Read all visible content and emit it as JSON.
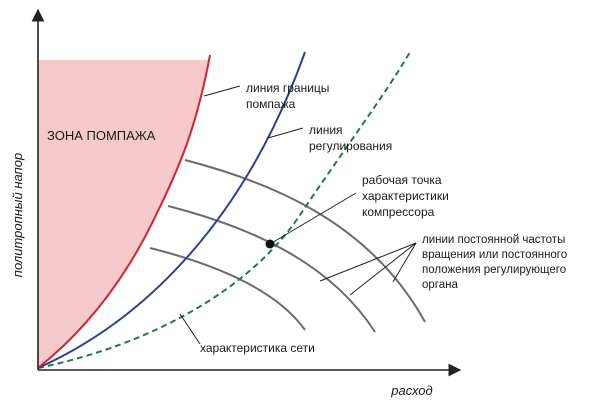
{
  "axes": {
    "x_label": "расход",
    "y_label": "политропный напор"
  },
  "zone": {
    "label": "ЗОНА ПОМПАЖА"
  },
  "labels": {
    "surge_line": [
      "линия границы",
      "помпажа"
    ],
    "control_line": [
      "линия",
      "регулирования"
    ],
    "operating_point": [
      "рабочая точка",
      "характеристики",
      "компрессора"
    ],
    "speed_lines": [
      "линии постоянной частоты",
      "вращения или постоянного",
      "положения регулирующего",
      "органа"
    ],
    "network": "характеристика сети"
  },
  "colors": {
    "surge": "#d6222a",
    "surge_zone_fill": "#f6c9cc",
    "control": "#2d3f95",
    "network": "#1f7a43",
    "speed_line": "#6b6b6b",
    "axis": "#222222"
  }
}
